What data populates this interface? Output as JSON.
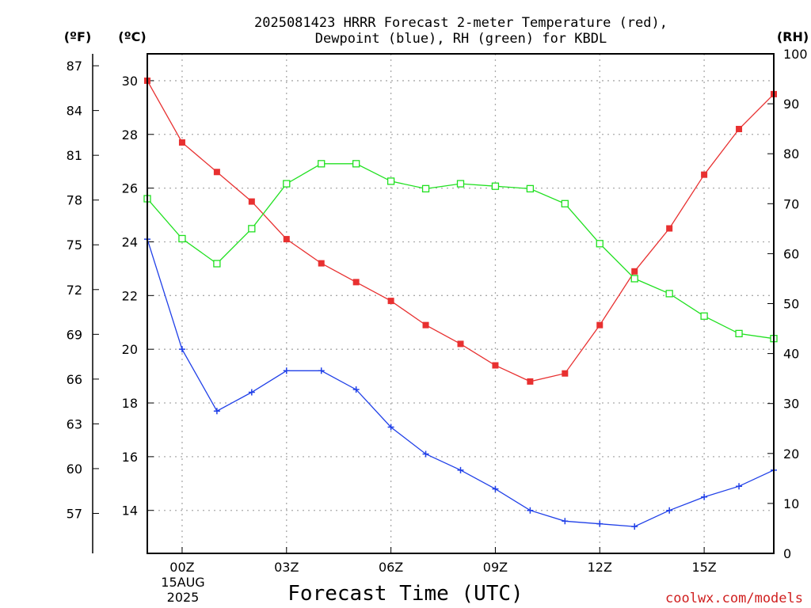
{
  "chart_data": {
    "type": "line",
    "title_line1": "2025081423 HRRR Forecast 2-meter Temperature (red),",
    "title_line2": "Dewpoint (blue), RH (green) for KBDL",
    "unit_f": "(ºF)",
    "unit_c": "(ºC)",
    "unit_rh": "(RH)",
    "xlabel": "Forecast Time (UTC)",
    "credit": "coolwx.com/models",
    "x": [
      "23Z",
      "00Z",
      "01Z",
      "02Z",
      "03Z",
      "04Z",
      "05Z",
      "06Z",
      "07Z",
      "08Z",
      "09Z",
      "10Z",
      "11Z",
      "12Z",
      "13Z",
      "14Z",
      "15Z",
      "16Z",
      "17Z"
    ],
    "x_ticks": [
      "00Z",
      "03Z",
      "06Z",
      "09Z",
      "12Z",
      "15Z"
    ],
    "x_date_line1": "15AUG",
    "x_date_line2": "2025",
    "ylim_c": [
      12.4,
      31.0
    ],
    "ylim_rh": [
      0,
      100
    ],
    "c_ticks": [
      "14",
      "16",
      "18",
      "20",
      "22",
      "24",
      "26",
      "28",
      "30"
    ],
    "f_ticks": [
      "57",
      "60",
      "63",
      "66",
      "69",
      "72",
      "75",
      "78",
      "81",
      "84",
      "87"
    ],
    "rh_ticks": [
      "0",
      "10",
      "20",
      "30",
      "40",
      "50",
      "60",
      "70",
      "80",
      "90",
      "100"
    ],
    "grid": true,
    "series": [
      {
        "name": "Temperature",
        "axis": "C",
        "color": "#e83030",
        "marker": "filled-square",
        "values": [
          30.0,
          27.7,
          26.6,
          25.5,
          24.1,
          23.2,
          22.5,
          21.8,
          20.9,
          20.2,
          19.4,
          18.8,
          19.1,
          20.9,
          22.9,
          24.5,
          26.5,
          28.2,
          29.5
        ]
      },
      {
        "name": "Dewpoint",
        "axis": "C",
        "color": "#2040e8",
        "marker": "plus",
        "values": [
          24.1,
          20.0,
          17.7,
          18.4,
          19.2,
          19.2,
          18.5,
          17.1,
          16.1,
          15.5,
          14.8,
          14.0,
          13.6,
          13.5,
          13.4,
          14.0,
          14.5,
          14.9,
          15.5
        ]
      },
      {
        "name": "RH",
        "axis": "RH",
        "color": "#20e020",
        "marker": "open-square",
        "values": [
          71,
          63,
          58,
          65,
          74,
          78,
          78,
          74.5,
          73,
          74,
          73.5,
          73,
          70,
          62,
          55,
          52,
          47.5,
          44,
          43
        ]
      }
    ]
  }
}
